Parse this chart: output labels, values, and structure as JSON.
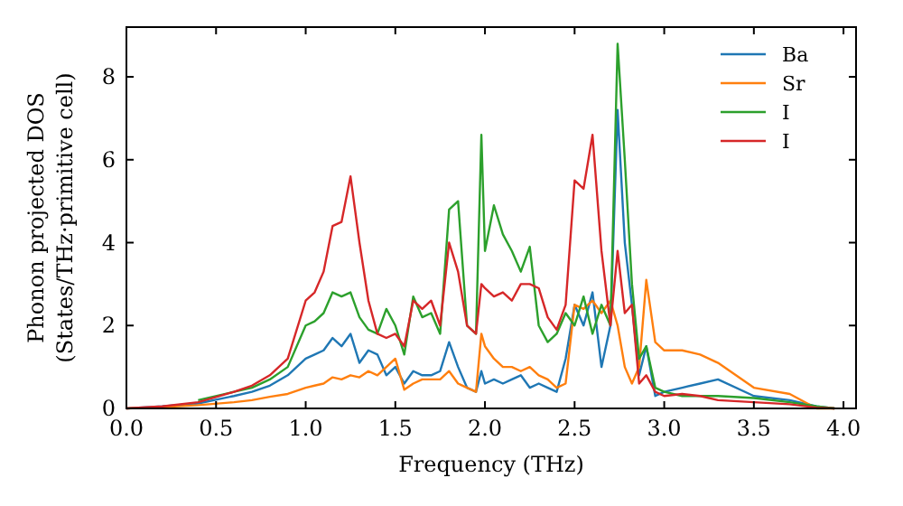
{
  "chart_data": {
    "type": "line",
    "xlabel": "Frequency (THz)",
    "ylabel": "Phonon projected DOS\n(States/THz·primitive cell)",
    "x": [
      0,
      0.2,
      0.4,
      0.6,
      0.7,
      0.8,
      0.9,
      1.0,
      1.05,
      1.1,
      1.15,
      1.2,
      1.25,
      1.3,
      1.35,
      1.4,
      1.45,
      1.5,
      1.55,
      1.6,
      1.65,
      1.7,
      1.75,
      1.8,
      1.85,
      1.9,
      1.95,
      1.98,
      2.0,
      2.05,
      2.1,
      2.15,
      2.2,
      2.25,
      2.3,
      2.35,
      2.4,
      2.45,
      2.5,
      2.55,
      2.6,
      2.65,
      2.7,
      2.74,
      2.78,
      2.82,
      2.86,
      2.9,
      2.95,
      3.0,
      3.1,
      3.2,
      3.3,
      3.5,
      3.7,
      3.85,
      3.95
    ],
    "series": [
      {
        "name": "Ba",
        "color": "#1f77b4",
        "values": [
          0,
          0.05,
          0.12,
          0.3,
          0.4,
          0.55,
          0.8,
          1.2,
          1.3,
          1.4,
          1.7,
          1.5,
          1.8,
          1.1,
          1.4,
          1.3,
          0.8,
          1.0,
          0.6,
          0.9,
          0.8,
          0.8,
          0.9,
          1.6,
          1.0,
          0.5,
          0.4,
          0.9,
          0.6,
          0.7,
          0.6,
          0.7,
          0.8,
          0.5,
          0.6,
          0.5,
          0.4,
          1.2,
          2.5,
          2.0,
          2.8,
          1.0,
          2.0,
          7.2,
          4.0,
          2.5,
          0.8,
          1.5,
          0.3,
          0.4,
          0.5,
          0.6,
          0.7,
          0.3,
          0.2,
          0.05,
          0
        ]
      },
      {
        "name": "Sr",
        "color": "#ff7f0e",
        "values": [
          0,
          0.03,
          0.08,
          0.15,
          0.2,
          0.28,
          0.35,
          0.5,
          0.55,
          0.6,
          0.75,
          0.7,
          0.8,
          0.75,
          0.9,
          0.8,
          1.0,
          1.2,
          0.45,
          0.6,
          0.7,
          0.7,
          0.7,
          0.9,
          0.6,
          0.5,
          0.4,
          1.8,
          1.5,
          1.2,
          1.0,
          1.0,
          0.9,
          1.0,
          0.8,
          0.7,
          0.5,
          0.6,
          2.5,
          2.4,
          2.6,
          2.3,
          2.6,
          2.0,
          1.0,
          0.6,
          1.0,
          3.1,
          1.6,
          1.4,
          1.4,
          1.3,
          1.1,
          0.5,
          0.35,
          0,
          0
        ]
      },
      {
        "name": "I",
        "color": "#2ca02c",
        "values": [
          null,
          null,
          0.2,
          0.4,
          0.5,
          0.7,
          1.0,
          2.0,
          2.1,
          2.3,
          2.8,
          2.7,
          2.8,
          2.2,
          1.9,
          1.8,
          2.4,
          2.0,
          1.3,
          2.7,
          2.2,
          2.3,
          1.8,
          4.8,
          5.0,
          2.0,
          1.8,
          6.6,
          3.8,
          4.9,
          4.2,
          3.8,
          3.3,
          3.9,
          2.0,
          1.6,
          1.8,
          2.3,
          2.0,
          2.7,
          1.8,
          2.5,
          2.0,
          8.8,
          6.0,
          3.0,
          1.2,
          1.5,
          0.5,
          0.4,
          0.3,
          0.3,
          0.3,
          0.25,
          0.15,
          0.05,
          0
        ]
      },
      {
        "name": "I",
        "color": "#d62728",
        "values": [
          0,
          0.05,
          0.15,
          0.4,
          0.55,
          0.8,
          1.2,
          2.6,
          2.8,
          3.3,
          4.4,
          4.5,
          5.6,
          4.0,
          2.6,
          1.8,
          1.7,
          1.8,
          1.5,
          2.6,
          2.4,
          2.6,
          2.0,
          4.0,
          3.3,
          2.0,
          1.8,
          3.0,
          2.9,
          2.7,
          2.8,
          2.6,
          3.0,
          3.0,
          2.9,
          2.2,
          1.9,
          2.5,
          5.5,
          5.3,
          6.6,
          3.8,
          2.0,
          3.8,
          2.3,
          2.5,
          0.6,
          0.8,
          0.4,
          0.3,
          0.35,
          0.3,
          0.2,
          0.15,
          0.1,
          0.02,
          0
        ]
      }
    ],
    "xlim": [
      0,
      4.07
    ],
    "ylim": [
      0,
      9.2
    ],
    "xticks": [
      {
        "value": 0,
        "label": "0.0"
      },
      {
        "value": 0.5,
        "label": "0.5"
      },
      {
        "value": 1,
        "label": "1.0"
      },
      {
        "value": 1.5,
        "label": "1.5"
      },
      {
        "value": 2,
        "label": "2.0"
      },
      {
        "value": 2.5,
        "label": "2.5"
      },
      {
        "value": 3,
        "label": "3.0"
      },
      {
        "value": 3.5,
        "label": "3.5"
      },
      {
        "value": 4,
        "label": "4.0"
      }
    ],
    "yticks": [
      0,
      2,
      4,
      6,
      8
    ],
    "legend": "top right",
    "grid": false
  }
}
